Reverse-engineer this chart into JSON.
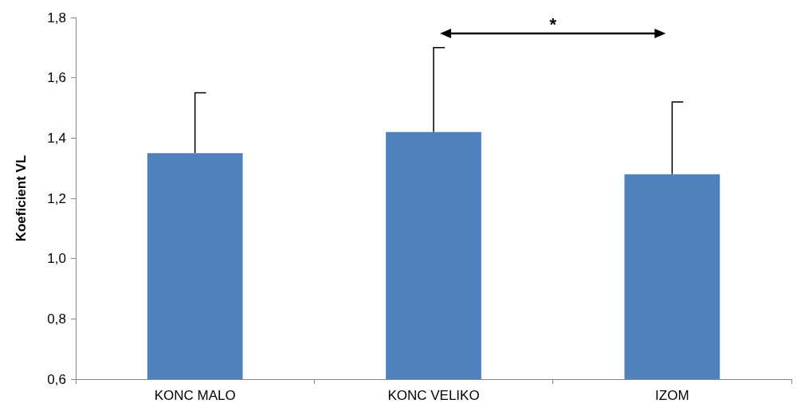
{
  "chart_data": {
    "type": "bar",
    "ylabel": "Koeficient VL",
    "categories": [
      "KONC MALO",
      "KONC VELIKO",
      "IZOM"
    ],
    "values": [
      1.35,
      1.42,
      1.28
    ],
    "color": "#4f81bd",
    "errors": [
      [
        1.35,
        1.55
      ],
      [
        1.42,
        1.7
      ],
      [
        1.28,
        1.52
      ]
    ],
    "ylim": [
      0.6,
      1.8
    ],
    "yticks": [
      {
        "value": 0.6,
        "label": "0,6"
      },
      {
        "value": 0.8,
        "label": "0,8"
      },
      {
        "value": 1.0,
        "label": "1,0"
      },
      {
        "value": 1.2,
        "label": "1,2"
      },
      {
        "value": 1.4,
        "label": "1,4"
      },
      {
        "value": 1.6,
        "label": "1,6"
      },
      {
        "value": 1.8,
        "label": "1,8"
      }
    ],
    "grid": false,
    "annotations": [
      "*"
    ]
  }
}
